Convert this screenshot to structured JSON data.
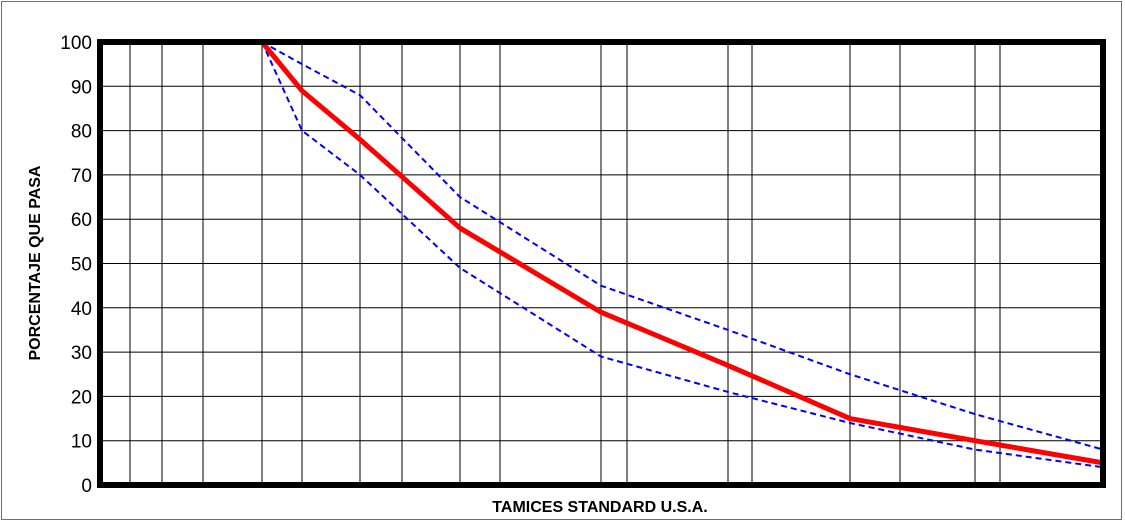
{
  "chart_data": {
    "type": "line",
    "title": "",
    "xlabel": "TAMICES STANDARD U.S.A.",
    "ylabel": "PORCENTAJE QUE PASA",
    "ylim": [
      0,
      100
    ],
    "yticks": [
      0,
      10,
      20,
      30,
      40,
      50,
      60,
      70,
      80,
      90,
      100
    ],
    "x_tick_labels_shown": false,
    "grid": true,
    "legend": "none",
    "x_sieve_index_range": [
      0,
      16
    ],
    "series": [
      {
        "style": "solid",
        "color": "#ff0000",
        "points": [
          [
            4,
            100
          ],
          [
            5,
            89
          ],
          [
            6,
            78
          ],
          [
            8,
            58
          ],
          [
            10,
            39
          ],
          [
            12,
            27
          ],
          [
            14,
            15
          ],
          [
            16,
            10
          ],
          [
            18,
            5
          ]
        ]
      },
      {
        "style": "dashed",
        "color": "#0000ff",
        "points": [
          [
            4,
            100
          ],
          [
            5,
            95
          ],
          [
            6,
            88
          ],
          [
            8,
            65
          ],
          [
            10,
            45
          ],
          [
            12,
            35
          ],
          [
            14,
            25
          ],
          [
            16,
            16
          ],
          [
            18,
            8
          ]
        ]
      },
      {
        "style": "dashed",
        "color": "#0000ff",
        "points": [
          [
            4,
            100
          ],
          [
            5,
            80
          ],
          [
            6,
            70
          ],
          [
            8,
            49
          ],
          [
            10,
            29
          ],
          [
            12,
            21
          ],
          [
            14,
            14
          ],
          [
            16,
            8
          ],
          [
            18,
            4
          ]
        ]
      }
    ]
  }
}
